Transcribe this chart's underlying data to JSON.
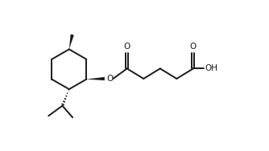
{
  "bg_color": "#ffffff",
  "line_color": "#1a1a1a",
  "line_width": 1.4,
  "figsize": [
    3.34,
    1.88
  ],
  "dpi": 100,
  "xlim": [
    0,
    10
  ],
  "ylim": [
    0,
    5.63
  ]
}
